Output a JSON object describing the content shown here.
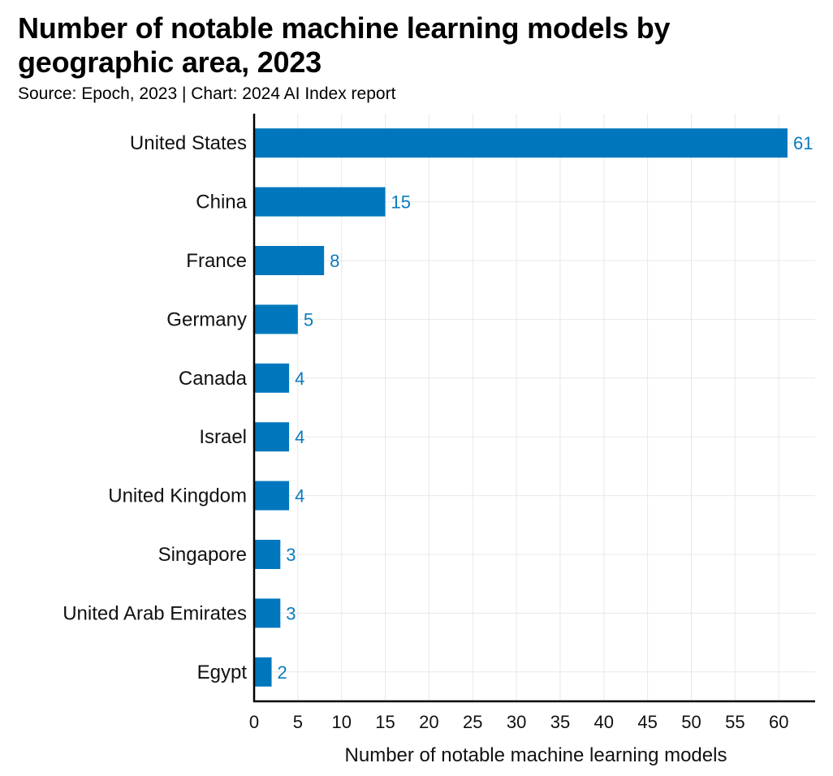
{
  "header": {
    "title": "Number of notable machine learning models by geographic area, 2023",
    "subtitle": "Source: Epoch, 2023 | Chart: 2024 AI Index report"
  },
  "colors": {
    "bar": "#0077bd",
    "value_label": "#0a7bbf",
    "grid": "#e8e8e8",
    "axis": "#000000"
  },
  "chart_data": {
    "type": "bar",
    "orientation": "horizontal",
    "title": "Number of notable machine learning models by geographic area, 2023",
    "categories": [
      "United States",
      "China",
      "France",
      "Germany",
      "Canada",
      "Israel",
      "United Kingdom",
      "Singapore",
      "United Arab Emirates",
      "Egypt"
    ],
    "values": [
      61,
      15,
      8,
      5,
      4,
      4,
      4,
      3,
      3,
      2
    ],
    "xlabel": "Number of notable machine learning models",
    "ylabel": "",
    "xlim": [
      0,
      64
    ],
    "xticks": [
      0,
      5,
      10,
      15,
      20,
      25,
      30,
      35,
      40,
      45,
      50,
      55,
      60
    ],
    "grid": true
  }
}
